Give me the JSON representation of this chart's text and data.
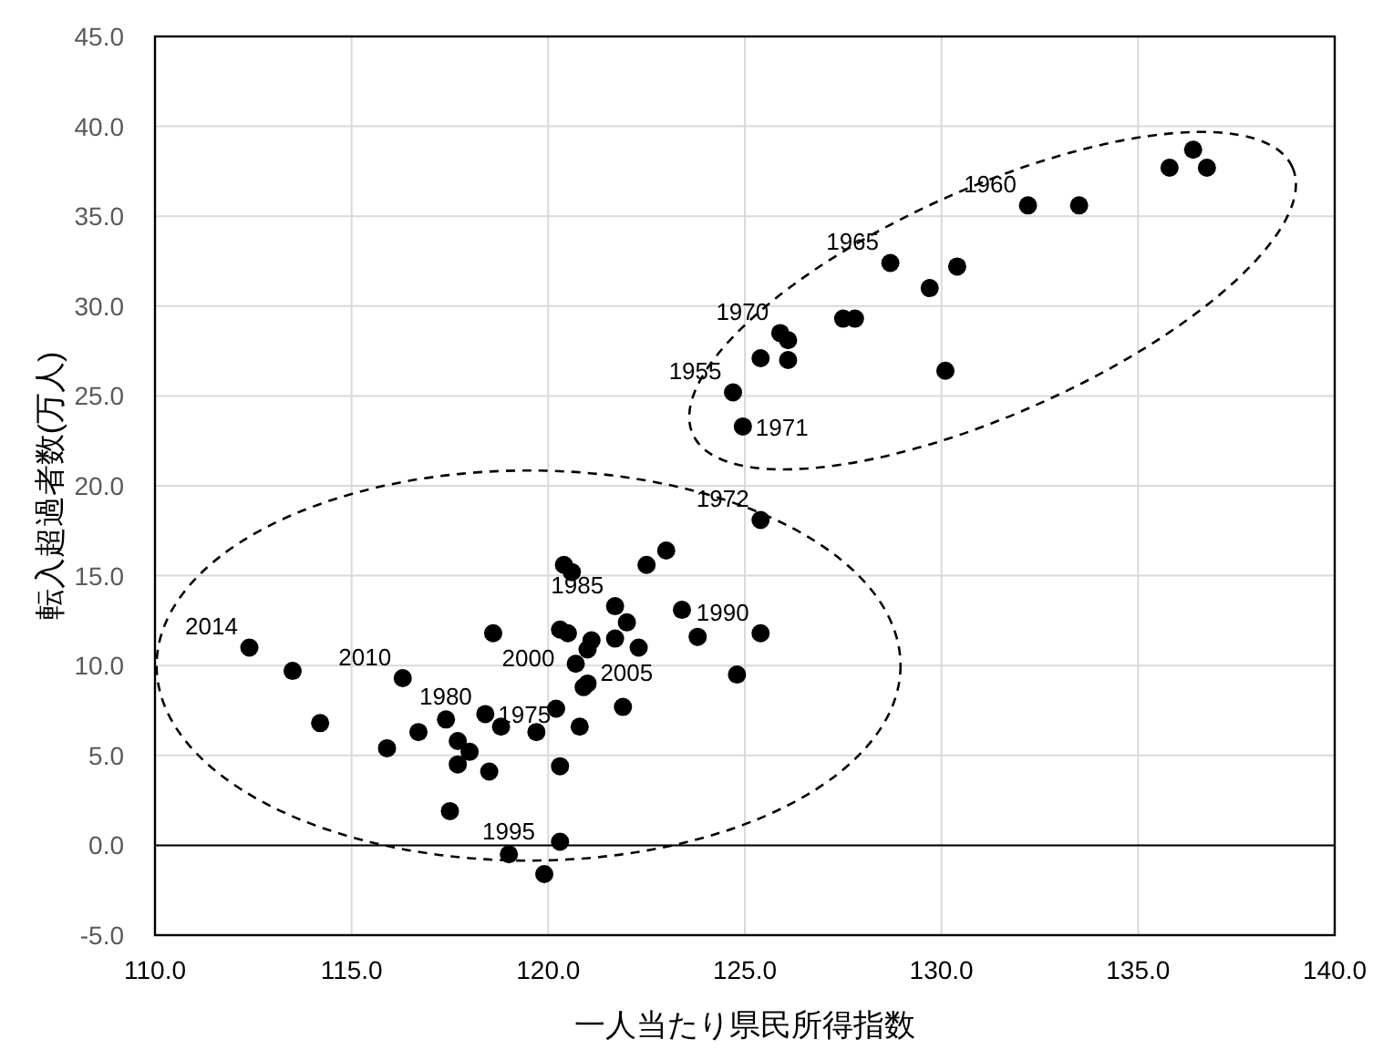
{
  "chart_data": {
    "type": "scatter",
    "xlabel": "一人当たり県民所得指数",
    "ylabel": "転入超過者数(万人)",
    "xlim": [
      110,
      140
    ],
    "ylim": [
      -5,
      45
    ],
    "xticks": [
      {
        "value": 110,
        "label": "110.0"
      },
      {
        "value": 115,
        "label": "115.0"
      },
      {
        "value": 120,
        "label": "120.0"
      },
      {
        "value": 125,
        "label": "125.0"
      },
      {
        "value": 130,
        "label": "130.0"
      },
      {
        "value": 135,
        "label": "135.0"
      },
      {
        "value": 140,
        "label": "140.0"
      }
    ],
    "yticks": [
      {
        "value": -5,
        "label": "-5.0"
      },
      {
        "value": 0,
        "label": "0.0"
      },
      {
        "value": 5,
        "label": "5.0"
      },
      {
        "value": 10,
        "label": "10.0"
      },
      {
        "value": 15,
        "label": "15.0"
      },
      {
        "value": 20,
        "label": "20.0"
      },
      {
        "value": 25,
        "label": "25.0"
      },
      {
        "value": 30,
        "label": "30.0"
      },
      {
        "value": 35,
        "label": "35.0"
      },
      {
        "value": 40,
        "label": "40.0"
      },
      {
        "value": 45,
        "label": "45.0"
      }
    ],
    "grid": true,
    "marker": "circle",
    "ref_lines": [
      {
        "axis": "y",
        "value": 0,
        "color": "#000000"
      }
    ],
    "series": [
      {
        "color": "#000000",
        "x": [
          136.4,
          135.8,
          136.75,
          132.2,
          133.5,
          128.7,
          130.4,
          129.7,
          127.5,
          127.8,
          125.9,
          126.1,
          125.4,
          126.1,
          130.1,
          124.7,
          124.95,
          125.4,
          123.0,
          122.5,
          120.4,
          120.6,
          121.7,
          123.4,
          122.0,
          120.3,
          120.5,
          118.6,
          125.4,
          123.8,
          121.7,
          121.1,
          121.0,
          122.3,
          120.7,
          112.4,
          113.5,
          124.8,
          116.3,
          120.9,
          121.0,
          114.2,
          117.4,
          118.4,
          118.8,
          116.7,
          119.7,
          120.2,
          121.9,
          120.8,
          115.9,
          117.7,
          118.0,
          117.7,
          118.5,
          120.3,
          117.5,
          120.3,
          119.0,
          119.9
        ],
        "values": [
          38.7,
          37.7,
          37.7,
          35.6,
          35.6,
          32.4,
          32.2,
          31.0,
          29.3,
          29.3,
          28.5,
          28.1,
          27.1,
          27.0,
          26.4,
          25.2,
          23.3,
          18.1,
          16.4,
          15.6,
          15.6,
          15.2,
          13.3,
          13.1,
          12.4,
          12.0,
          11.8,
          11.8,
          11.8,
          11.6,
          11.5,
          11.4,
          10.9,
          11.0,
          10.1,
          11.0,
          9.7,
          9.5,
          9.3,
          8.8,
          9.0,
          6.8,
          7.0,
          7.3,
          6.6,
          6.3,
          6.3,
          7.6,
          7.7,
          6.6,
          5.4,
          5.8,
          5.2,
          4.5,
          4.1,
          4.4,
          1.9,
          0.2,
          -0.5,
          -1.6
        ]
      }
    ],
    "annotations": [
      {
        "text": "1960",
        "x": 132.2,
        "y": 35.6
      },
      {
        "text": "1965",
        "x": 128.7,
        "y": 32.4
      },
      {
        "text": "1970",
        "x": 125.9,
        "y": 28.5
      },
      {
        "text": "1955",
        "x": 124.7,
        "y": 25.2
      },
      {
        "text": "1971",
        "x": 124.95,
        "y": 23.3
      },
      {
        "text": "1972",
        "x": 125.4,
        "y": 18.1
      },
      {
        "text": "1985",
        "x": 121.7,
        "y": 13.3
      },
      {
        "text": "2005",
        "x": 122.0,
        "y": 12.4
      },
      {
        "text": "2000",
        "x": 120.5,
        "y": 11.8
      },
      {
        "text": "1990",
        "x": 125.4,
        "y": 11.8
      },
      {
        "text": "2014",
        "x": 112.4,
        "y": 11.0
      },
      {
        "text": "2010",
        "x": 116.3,
        "y": 9.3
      },
      {
        "text": "1980",
        "x": 117.4,
        "y": 7.0
      },
      {
        "text": "1975",
        "x": 118.4,
        "y": 7.3
      },
      {
        "text": "1995",
        "x": 119.0,
        "y": -0.5
      }
    ]
  }
}
